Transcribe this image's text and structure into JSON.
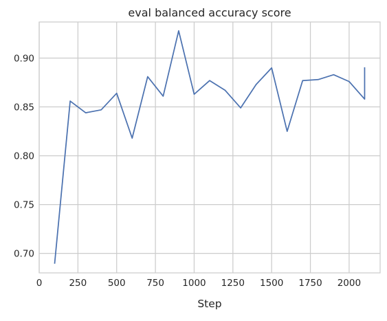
{
  "chart_data": {
    "type": "line",
    "title": "eval balanced accuracy score",
    "xlabel": "Step",
    "ylabel": "",
    "xlim": [
      0,
      2200
    ],
    "ylim": [
      0.68,
      0.937
    ],
    "xticks": [
      0,
      250,
      500,
      750,
      1000,
      1250,
      1500,
      1750,
      2000
    ],
    "xtick_labels": [
      "0",
      "250",
      "500",
      "750",
      "1000",
      "1250",
      "1500",
      "1750",
      "2000"
    ],
    "yticks": [
      0.7,
      0.75,
      0.8,
      0.85,
      0.9
    ],
    "ytick_labels": [
      "0.70",
      "0.75",
      "0.80",
      "0.85",
      "0.90"
    ],
    "grid": true,
    "legend": "none",
    "series": [
      {
        "color": "#4c72b0",
        "x": [
          100,
          200,
          300,
          400,
          500,
          600,
          700,
          800,
          900,
          1000,
          1100,
          1200,
          1300,
          1400,
          1500,
          1600,
          1700,
          1800,
          1900,
          2000,
          2100,
          2100
        ],
        "y": [
          0.69,
          0.856,
          0.844,
          0.847,
          0.864,
          0.818,
          0.881,
          0.861,
          0.928,
          0.863,
          0.877,
          0.867,
          0.849,
          0.873,
          0.89,
          0.825,
          0.877,
          0.878,
          0.883,
          0.876,
          0.858,
          0.89
        ]
      }
    ]
  }
}
